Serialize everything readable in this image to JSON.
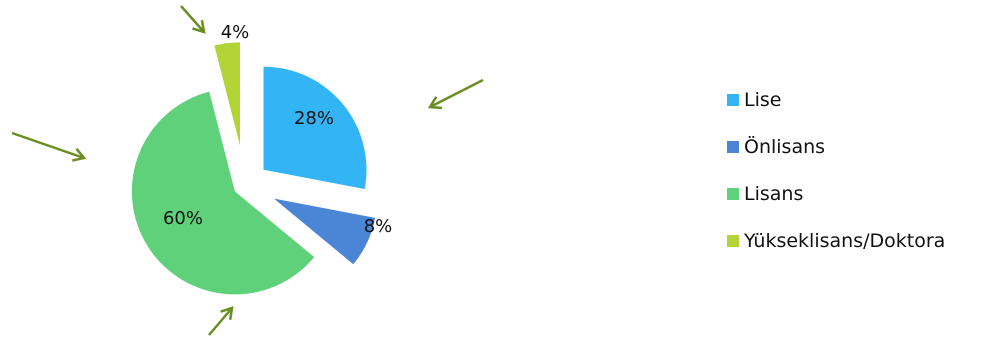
{
  "chart_data": {
    "type": "pie",
    "title": "",
    "categories": [
      "Lise",
      "Önlisans",
      "Lisans",
      "Yükseklisans/Doktora"
    ],
    "values": [
      28,
      8,
      60,
      4
    ],
    "value_labels": [
      "28%",
      "8%",
      "60%",
      "4%"
    ],
    "colors": [
      "#33b5f5",
      "#4a85d6",
      "#5ed17a",
      "#b3d437"
    ],
    "exploded": true,
    "legend_position": "right",
    "annotations": {
      "arrow_color": "#6b8e23",
      "arrow_count": 5
    }
  }
}
